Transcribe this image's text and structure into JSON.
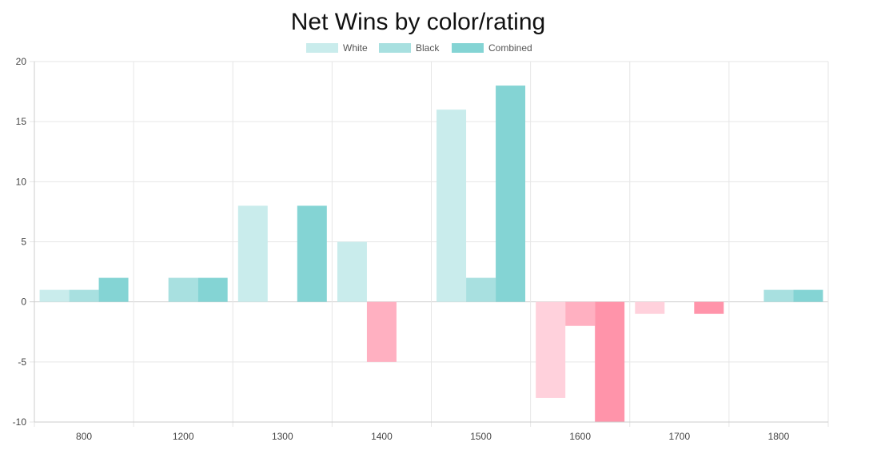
{
  "chart_data": {
    "type": "bar",
    "title": "Net Wins by color/rating",
    "categories": [
      "800",
      "1200",
      "1300",
      "1400",
      "1500",
      "1600",
      "1700",
      "1800"
    ],
    "series": [
      {
        "name": "White",
        "values": [
          1,
          0,
          8,
          5,
          16,
          -8,
          -1,
          0
        ]
      },
      {
        "name": "Black",
        "values": [
          1,
          2,
          0,
          -5,
          2,
          -2,
          0,
          1
        ]
      },
      {
        "name": "Combined",
        "values": [
          2,
          2,
          8,
          0,
          18,
          -10,
          -1,
          1
        ]
      }
    ],
    "ylim": [
      -10,
      20
    ],
    "yticks": [
      20,
      15,
      10,
      5,
      0,
      -5,
      -10
    ],
    "grid": true,
    "legend_position": "top-center",
    "colors": {
      "positive": [
        "#c9ecec",
        "#a8e0e0",
        "#84d4d4"
      ],
      "negative": [
        "#ffd1dc",
        "#ffb0c1",
        "#ff94aa"
      ],
      "grid": "#e6e6e6",
      "axis": "#cccccc"
    }
  }
}
